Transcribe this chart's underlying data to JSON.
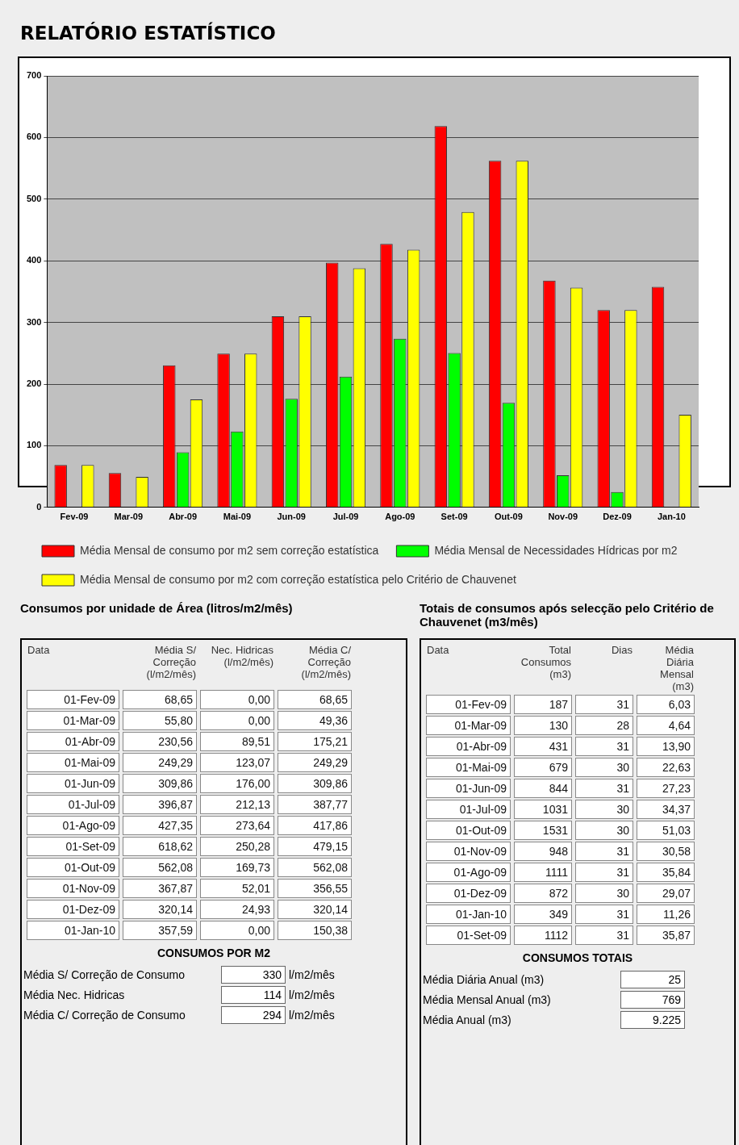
{
  "chart_data": [
    {
      "type": "bar",
      "title": "RELATÓRIO ESTATÍSTICO",
      "categories": [
        "Fev-09",
        "Mar-09",
        "Abr-09",
        "Mai-09",
        "Jun-09",
        "Jul-09",
        "Ago-09",
        "Set-09",
        "Out-09",
        "Nov-09",
        "Dez-09",
        "Jan-10"
      ],
      "series": [
        {
          "name": "Média Mensal de consumo por m2 sem correção estatística",
          "color": "#ff0000",
          "values": [
            68.65,
            55.8,
            230.56,
            249.29,
            309.86,
            396.87,
            427.35,
            618.62,
            562.08,
            367.87,
            320.14,
            357.59
          ]
        },
        {
          "name": "Média Mensal de Necessidades Hídricas por m2",
          "color": "#00ff00",
          "values": [
            0.0,
            0.0,
            89.51,
            123.07,
            176.0,
            212.13,
            273.64,
            250.28,
            169.73,
            52.01,
            24.93,
            0.0
          ]
        },
        {
          "name": "Média Mensal de consumo por m2 com correção estatística pelo Critério de Chauvenet",
          "color": "#ffff00",
          "values": [
            68.65,
            49.36,
            175.21,
            249.29,
            309.86,
            387.77,
            417.86,
            479.15,
            562.08,
            356.55,
            320.14,
            150.38
          ]
        }
      ],
      "ylim": [
        0,
        700
      ],
      "yticks": [
        0,
        100,
        200,
        300,
        400,
        500,
        600,
        700
      ],
      "grid": "y",
      "legend": "bottom"
    },
    {
      "type": "other",
      "title": "Consumos por unidade de Área (litros/m2/mês)",
      "xlabel": "Data",
      "annotations": [
        "Média S/ Correção (l/m2/mês)",
        "Nec. Hidricas (l/m2/mês)",
        "Média C/ Correção (l/m2/mês)"
      ],
      "categories": [
        "01-Fev-09",
        "01-Mar-09",
        "01-Abr-09",
        "01-Mai-09",
        "01-Jun-09",
        "01-Jul-09",
        "01-Ago-09",
        "01-Set-09",
        "01-Out-09",
        "01-Nov-09",
        "01-Dez-09",
        "01-Jan-10"
      ],
      "series": [
        {
          "values": [
            68.65,
            55.8,
            230.56,
            249.29,
            309.86,
            396.87,
            427.35,
            618.62,
            562.08,
            367.87,
            320.14,
            357.59
          ],
          "value_labels": [
            "68,65",
            "55,80",
            "230,56",
            "249,29",
            "309,86",
            "396,87",
            "427,35",
            "618,62",
            "562,08",
            "367,87",
            "320,14",
            "357,59"
          ]
        },
        {
          "values": [
            0.0,
            0.0,
            89.51,
            123.07,
            176.0,
            212.13,
            273.64,
            250.28,
            169.73,
            52.01,
            24.93,
            0.0
          ],
          "value_labels": [
            "0,00",
            "0,00",
            "89,51",
            "123,07",
            "176,00",
            "212,13",
            "273,64",
            "250,28",
            "169,73",
            "52,01",
            "24,93",
            "0,00"
          ]
        },
        {
          "values": [
            68.65,
            49.36,
            175.21,
            249.29,
            309.86,
            387.77,
            417.86,
            479.15,
            562.08,
            356.55,
            320.14,
            150.38
          ],
          "value_labels": [
            "68,65",
            "49,36",
            "175,21",
            "249,29",
            "309,86",
            "387,77",
            "417,86",
            "479,15",
            "562,08",
            "356,55",
            "320,14",
            "150,38"
          ]
        }
      ]
    },
    {
      "type": "other",
      "title": "CONSUMOS POR M2",
      "categories": [
        "Média S/ Correção de Consumo",
        "Média Nec. Hidricas",
        "Média C/ Correção de Consumo"
      ],
      "values": [
        330,
        114,
        294
      ],
      "value_labels": [
        "330",
        "114",
        "294"
      ],
      "ylabel": "l/m2/mês"
    },
    {
      "type": "other",
      "title": "Totais de consumos após selecção pelo Critério de Chauvenet (m3/mês)",
      "xlabel": "Data",
      "annotations": [
        "Total Consumos (m3)",
        "Dias",
        "Média Diária Mensal (m3)"
      ],
      "categories": [
        "01-Fev-09",
        "01-Mar-09",
        "01-Abr-09",
        "01-Mai-09",
        "01-Jun-09",
        "01-Jul-09",
        "01-Out-09",
        "01-Nov-09",
        "01-Ago-09",
        "01-Dez-09",
        "01-Jan-10",
        "01-Set-09"
      ],
      "series": [
        {
          "values": [
            187,
            130,
            431,
            679,
            844,
            1031,
            1531,
            948,
            1111,
            872,
            349,
            1112
          ],
          "value_labels": [
            "187",
            "130",
            "431",
            "679",
            "844",
            "1031",
            "1531",
            "948",
            "1111",
            "872",
            "349",
            "1112"
          ]
        },
        {
          "values": [
            31,
            28,
            31,
            30,
            31,
            30,
            30,
            31,
            31,
            30,
            31,
            31
          ],
          "value_labels": [
            "31",
            "28",
            "31",
            "30",
            "31",
            "30",
            "30",
            "31",
            "31",
            "30",
            "31",
            "31"
          ]
        },
        {
          "values": [
            6.03,
            4.64,
            13.9,
            22.63,
            27.23,
            34.37,
            51.03,
            30.58,
            35.84,
            29.07,
            11.26,
            35.87
          ],
          "value_labels": [
            "6,03",
            "4,64",
            "13,90",
            "22,63",
            "27,23",
            "34,37",
            "51,03",
            "30,58",
            "35,84",
            "29,07",
            "11,26",
            "35,87"
          ]
        }
      ]
    },
    {
      "type": "other",
      "title": "CONSUMOS TOTAIS",
      "categories": [
        "Média Diária Anual (m3)",
        "Média Mensal Anual (m3)",
        "Média Anual (m3)"
      ],
      "values": [
        25,
        769,
        9225
      ],
      "value_labels": [
        "25",
        "769",
        "9.225"
      ]
    }
  ]
}
